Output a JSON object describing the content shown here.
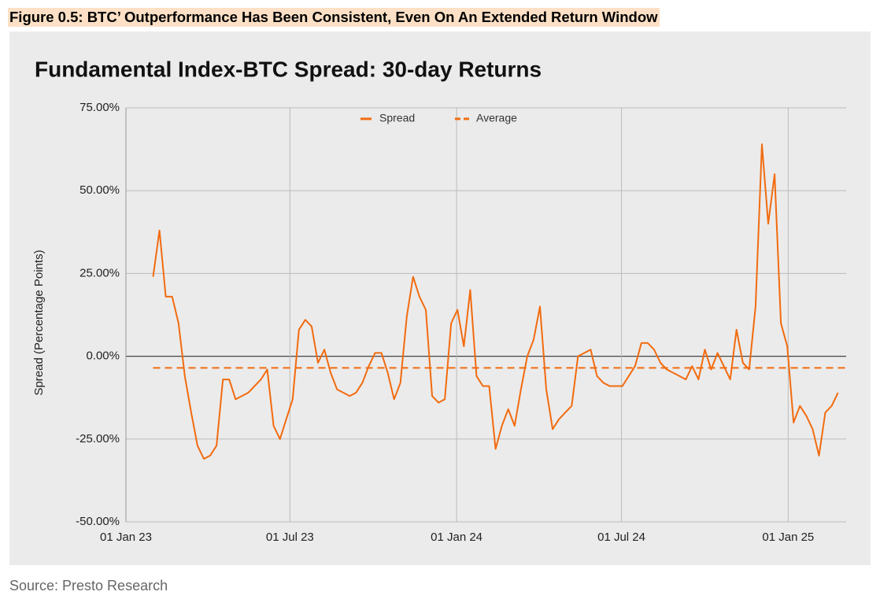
{
  "figure_title": "Figure 0.5: BTC’ Outperformance Has Been Consistent, Even On An Extended Return Window",
  "source": "Source: Presto Research",
  "chart_data": {
    "type": "line",
    "title": "Fundamental Index-BTC Spread: 30-day Returns",
    "y_label": "Spread (Percentage Points)",
    "x": [
      "2023-01-31",
      "2023-02-07",
      "2023-02-14",
      "2023-02-21",
      "2023-02-28",
      "2023-03-07",
      "2023-03-14",
      "2023-03-21",
      "2023-03-28",
      "2023-04-04",
      "2023-04-11",
      "2023-04-18",
      "2023-04-25",
      "2023-05-02",
      "2023-05-09",
      "2023-05-16",
      "2023-05-23",
      "2023-05-30",
      "2023-06-06",
      "2023-06-13",
      "2023-06-20",
      "2023-06-27",
      "2023-07-04",
      "2023-07-11",
      "2023-07-18",
      "2023-07-25",
      "2023-08-01",
      "2023-08-08",
      "2023-08-15",
      "2023-08-22",
      "2023-08-29",
      "2023-09-05",
      "2023-09-12",
      "2023-09-19",
      "2023-09-26",
      "2023-10-03",
      "2023-10-10",
      "2023-10-17",
      "2023-10-24",
      "2023-10-31",
      "2023-11-07",
      "2023-11-14",
      "2023-11-21",
      "2023-11-28",
      "2023-12-05",
      "2023-12-12",
      "2023-12-19",
      "2023-12-26",
      "2024-01-02",
      "2024-01-09",
      "2024-01-16",
      "2024-01-23",
      "2024-01-30",
      "2024-02-06",
      "2024-02-13",
      "2024-02-20",
      "2024-02-27",
      "2024-03-05",
      "2024-03-12",
      "2024-03-19",
      "2024-03-26",
      "2024-04-02",
      "2024-04-09",
      "2024-04-16",
      "2024-04-23",
      "2024-04-30",
      "2024-05-07",
      "2024-05-14",
      "2024-05-21",
      "2024-05-28",
      "2024-06-04",
      "2024-06-11",
      "2024-06-18",
      "2024-06-25",
      "2024-07-02",
      "2024-07-09",
      "2024-07-16",
      "2024-07-23",
      "2024-07-30",
      "2024-08-06",
      "2024-08-13",
      "2024-08-20",
      "2024-08-27",
      "2024-09-03",
      "2024-09-10",
      "2024-09-17",
      "2024-09-24",
      "2024-10-01",
      "2024-10-08",
      "2024-10-15",
      "2024-10-22",
      "2024-10-29",
      "2024-11-05",
      "2024-11-12",
      "2024-11-19",
      "2024-11-26",
      "2024-12-03",
      "2024-12-10",
      "2024-12-17",
      "2024-12-24",
      "2024-12-31",
      "2025-01-07",
      "2025-01-14",
      "2025-01-21",
      "2025-01-28",
      "2025-02-04",
      "2025-02-11",
      "2025-02-18",
      "2025-02-25"
    ],
    "series": [
      {
        "name": "Spread",
        "color": "#f26b0f",
        "values": [
          24,
          38,
          18,
          18,
          10,
          -6,
          -17,
          -27,
          -31,
          -30,
          -27,
          -7,
          -7,
          -13,
          -12,
          -11,
          -9,
          -7,
          -4,
          -21,
          -25,
          -19,
          -13,
          8,
          11,
          9,
          -2,
          2,
          -5,
          -10,
          -11,
          -12,
          -11,
          -8,
          -3,
          1,
          1,
          -5,
          -13,
          -8,
          12,
          24,
          18,
          14,
          -12,
          -14,
          -13,
          10,
          14,
          3,
          20,
          -6,
          -9,
          -9,
          -28,
          -21,
          -16,
          -21,
          -10,
          0,
          5,
          15,
          -10,
          -22,
          -19,
          -17,
          -15,
          0,
          1,
          2,
          -6,
          -8,
          -9,
          -9,
          -9,
          -6,
          -3,
          4,
          4,
          2,
          -2,
          -4,
          -5,
          -6,
          -7,
          -3,
          -7,
          2,
          -4,
          1,
          -3,
          -7,
          8,
          -2,
          -4,
          15,
          64,
          40,
          55,
          10,
          3,
          -20,
          -15,
          -18,
          -22,
          -30,
          -17,
          -15,
          -11
        ]
      }
    ],
    "average": {
      "name": "Average",
      "value": -3.5,
      "color": "#f26b0f",
      "dashed": true
    },
    "xlim": [
      "2023-01-01",
      "2025-03-06"
    ],
    "xticks": [
      {
        "value": "2023-01-01",
        "label": "01 Jan 23"
      },
      {
        "value": "2023-07-01",
        "label": "01 Jul 23"
      },
      {
        "value": "2024-01-01",
        "label": "01 Jan 24"
      },
      {
        "value": "2024-07-01",
        "label": "01 Jul 24"
      },
      {
        "value": "2025-01-01",
        "label": "01 Jan 25"
      }
    ],
    "ylim": [
      -50,
      75
    ],
    "yticks": [
      {
        "value": -50,
        "label": "-50.00%"
      },
      {
        "value": -25,
        "label": "-25.00%"
      },
      {
        "value": 0,
        "label": "0.00%"
      },
      {
        "value": 25,
        "label": "25.00%"
      },
      {
        "value": 50,
        "label": "50.00%"
      },
      {
        "value": 75,
        "label": "75.00%"
      }
    ],
    "grid": true,
    "legend": "top"
  }
}
